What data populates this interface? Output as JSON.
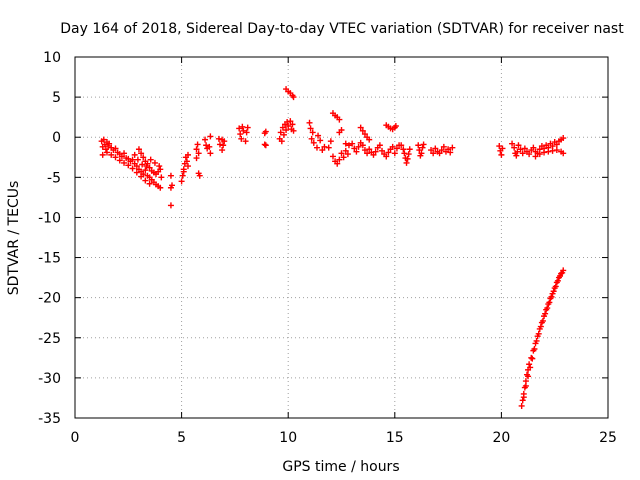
{
  "chart_data": {
    "type": "scatter",
    "title": "Day 164 of 2018, Sidereal Day-to-day VTEC variation (SDTVAR) for receiver nast",
    "xlabel": "GPS time / hours",
    "ylabel": "SDTVAR / TECUs",
    "xlim": [
      0,
      25
    ],
    "ylim": [
      -35,
      10
    ],
    "xticks": [
      "0",
      "5",
      "10",
      "15",
      "20",
      "25"
    ],
    "yticks": [
      "10",
      "5",
      "0",
      "-5",
      "-10",
      "-15",
      "-20",
      "-25",
      "-30",
      "-35"
    ],
    "grid": true,
    "marker": "+",
    "color": "#ff0000",
    "series": [
      {
        "name": "nast",
        "points": [
          [
            1.25,
            -0.5
          ],
          [
            1.3,
            -1.2
          ],
          [
            1.3,
            -2.2
          ],
          [
            1.35,
            -0.3
          ],
          [
            1.4,
            -0.9
          ],
          [
            1.45,
            -1.5
          ],
          [
            1.5,
            -0.6
          ],
          [
            1.55,
            -1.1
          ],
          [
            1.6,
            -0.8
          ],
          [
            1.7,
            -1.3
          ],
          [
            1.8,
            -1.6
          ],
          [
            1.9,
            -1.4
          ],
          [
            2.0,
            -1.9
          ],
          [
            2.1,
            -2.1
          ],
          [
            2.2,
            -2.4
          ],
          [
            2.3,
            -2.0
          ],
          [
            2.4,
            -2.6
          ],
          [
            2.5,
            -2.7
          ],
          [
            2.6,
            -3.0
          ],
          [
            2.7,
            -2.8
          ],
          [
            2.8,
            -3.3
          ],
          [
            2.9,
            -3.6
          ],
          [
            3.0,
            -4.0
          ],
          [
            3.1,
            -4.3
          ],
          [
            3.2,
            -4.6
          ],
          [
            3.3,
            -4.1
          ],
          [
            3.4,
            -4.8
          ],
          [
            3.5,
            -5.0
          ],
          [
            3.6,
            -5.3
          ],
          [
            3.7,
            -5.6
          ],
          [
            3.8,
            -5.9
          ],
          [
            3.9,
            -6.1
          ],
          [
            4.0,
            -6.3
          ],
          [
            1.5,
            -1.9
          ],
          [
            1.7,
            -2.2
          ],
          [
            1.9,
            -2.5
          ],
          [
            2.1,
            -2.9
          ],
          [
            2.3,
            -3.2
          ],
          [
            2.5,
            -3.5
          ],
          [
            2.7,
            -3.9
          ],
          [
            2.9,
            -4.4
          ],
          [
            3.1,
            -4.9
          ],
          [
            3.3,
            -5.4
          ],
          [
            3.5,
            -5.8
          ],
          [
            3.0,
            -1.5
          ],
          [
            3.1,
            -2.0
          ],
          [
            3.2,
            -2.5
          ],
          [
            3.3,
            -3.0
          ],
          [
            3.4,
            -3.3
          ],
          [
            3.5,
            -3.8
          ],
          [
            3.6,
            -4.2
          ],
          [
            3.7,
            -4.4
          ],
          [
            3.8,
            -4.6
          ],
          [
            3.9,
            -4.3
          ],
          [
            4.0,
            -4.0
          ],
          [
            2.8,
            -2.2
          ],
          [
            2.95,
            -2.8
          ],
          [
            3.15,
            -3.4
          ],
          [
            3.35,
            -3.6
          ],
          [
            3.55,
            -2.8
          ],
          [
            3.75,
            -3.2
          ],
          [
            3.95,
            -3.6
          ],
          [
            4.05,
            -5.0
          ],
          [
            4.5,
            -4.8
          ],
          [
            4.5,
            -6.3
          ],
          [
            4.5,
            -8.5
          ],
          [
            4.55,
            -6.0
          ],
          [
            5.0,
            -5.5
          ],
          [
            5.05,
            -4.8
          ],
          [
            5.1,
            -4.0
          ],
          [
            5.15,
            -3.3
          ],
          [
            5.2,
            -2.5
          ],
          [
            5.3,
            -2.2
          ],
          [
            5.25,
            -3.0
          ],
          [
            5.3,
            -3.6
          ],
          [
            5.1,
            -4.3
          ],
          [
            5.7,
            -1.5
          ],
          [
            5.7,
            -2.6
          ],
          [
            5.75,
            -0.9
          ],
          [
            5.8,
            -2.0
          ],
          [
            5.8,
            -4.5
          ],
          [
            5.85,
            -4.8
          ],
          [
            6.1,
            -0.3
          ],
          [
            6.15,
            -1.0
          ],
          [
            6.2,
            -1.4
          ],
          [
            6.35,
            -2.0
          ],
          [
            6.3,
            -1.2
          ],
          [
            6.35,
            0.1
          ],
          [
            6.75,
            -0.2
          ],
          [
            6.8,
            -0.9
          ],
          [
            6.9,
            -1.6
          ],
          [
            6.9,
            -0.3
          ],
          [
            6.95,
            -1.0
          ],
          [
            7.0,
            -0.5
          ],
          [
            7.7,
            1.1
          ],
          [
            7.75,
            0.4
          ],
          [
            7.8,
            -0.2
          ],
          [
            7.85,
            1.3
          ],
          [
            7.9,
            0.8
          ],
          [
            8.0,
            -0.5
          ],
          [
            8.05,
            0.6
          ],
          [
            8.1,
            1.2
          ],
          [
            8.9,
            0.5
          ],
          [
            8.9,
            -0.9
          ],
          [
            8.95,
            0.7
          ],
          [
            8.95,
            -1.0
          ],
          [
            9.6,
            -0.2
          ],
          [
            9.65,
            0.6
          ],
          [
            9.7,
            -0.5
          ],
          [
            9.75,
            1.2
          ],
          [
            9.8,
            0.3
          ],
          [
            9.85,
            1.6
          ],
          [
            9.9,
            0.9
          ],
          [
            9.95,
            1.9
          ],
          [
            10.0,
            1.4
          ],
          [
            10.1,
            2.0
          ],
          [
            10.15,
            1.0
          ],
          [
            10.2,
            1.6
          ],
          [
            10.25,
            0.8
          ],
          [
            9.9,
            6.0
          ],
          [
            10.0,
            5.7
          ],
          [
            10.1,
            5.5
          ],
          [
            10.2,
            5.2
          ],
          [
            10.25,
            5.0
          ],
          [
            11.0,
            1.8
          ],
          [
            11.05,
            1.1
          ],
          [
            11.1,
            -0.2
          ],
          [
            11.15,
            0.6
          ],
          [
            11.2,
            -0.7
          ],
          [
            11.35,
            -1.3
          ],
          [
            11.4,
            0.2
          ],
          [
            11.5,
            -0.4
          ],
          [
            11.6,
            -1.6
          ],
          [
            11.7,
            -1.2
          ],
          [
            11.9,
            -1.3
          ],
          [
            12.0,
            -0.5
          ],
          [
            12.1,
            -2.4
          ],
          [
            12.2,
            -3.0
          ],
          [
            12.3,
            -3.3
          ],
          [
            12.4,
            -2.8
          ],
          [
            12.5,
            -2.0
          ],
          [
            12.6,
            -2.5
          ],
          [
            12.7,
            -1.7
          ],
          [
            12.8,
            -2.1
          ],
          [
            12.85,
            -1.0
          ],
          [
            12.1,
            3.0
          ],
          [
            12.2,
            2.7
          ],
          [
            12.3,
            2.5
          ],
          [
            12.4,
            2.2
          ],
          [
            12.4,
            0.6
          ],
          [
            12.5,
            0.9
          ],
          [
            12.7,
            -0.8
          ],
          [
            13.0,
            -0.8
          ],
          [
            13.1,
            -1.4
          ],
          [
            13.2,
            -1.8
          ],
          [
            13.3,
            -1.2
          ],
          [
            13.4,
            -0.7
          ],
          [
            13.5,
            -1.0
          ],
          [
            13.6,
            -1.6
          ],
          [
            13.7,
            -2.0
          ],
          [
            13.8,
            -1.5
          ],
          [
            13.9,
            -1.9
          ],
          [
            14.0,
            -2.2
          ],
          [
            14.1,
            -1.8
          ],
          [
            14.2,
            -1.3
          ],
          [
            14.3,
            -1.0
          ],
          [
            14.4,
            -1.7
          ],
          [
            14.5,
            -2.1
          ],
          [
            14.6,
            -2.4
          ],
          [
            14.7,
            -1.9
          ],
          [
            14.8,
            -1.5
          ],
          [
            14.9,
            -1.2
          ],
          [
            15.0,
            -2.0
          ],
          [
            15.1,
            -1.4
          ],
          [
            15.2,
            -1.0
          ],
          [
            13.4,
            1.2
          ],
          [
            13.5,
            0.8
          ],
          [
            13.6,
            0.4
          ],
          [
            13.7,
            0.0
          ],
          [
            13.8,
            -0.3
          ],
          [
            14.6,
            1.5
          ],
          [
            14.7,
            1.3
          ],
          [
            14.8,
            1.1
          ],
          [
            14.9,
            1.0
          ],
          [
            15.0,
            1.2
          ],
          [
            15.05,
            1.4
          ],
          [
            15.3,
            -1.0
          ],
          [
            15.4,
            -1.5
          ],
          [
            15.45,
            -2.0
          ],
          [
            15.5,
            -2.6
          ],
          [
            15.55,
            -3.2
          ],
          [
            15.6,
            -2.7
          ],
          [
            15.65,
            -2.1
          ],
          [
            15.7,
            -1.5
          ],
          [
            16.1,
            -1.0
          ],
          [
            16.15,
            -1.6
          ],
          [
            16.2,
            -2.3
          ],
          [
            16.25,
            -2.0
          ],
          [
            16.3,
            -1.3
          ],
          [
            16.35,
            -0.9
          ],
          [
            16.7,
            -1.6
          ],
          [
            16.8,
            -2.0
          ],
          [
            16.9,
            -1.4
          ],
          [
            17.0,
            -1.8
          ],
          [
            17.1,
            -2.0
          ],
          [
            17.2,
            -1.6
          ],
          [
            17.3,
            -1.2
          ],
          [
            17.4,
            -1.8
          ],
          [
            17.5,
            -1.5
          ],
          [
            17.6,
            -1.9
          ],
          [
            17.7,
            -1.3
          ],
          [
            19.9,
            -1.1
          ],
          [
            19.95,
            -1.7
          ],
          [
            20.0,
            -2.2
          ],
          [
            20.05,
            -1.4
          ],
          [
            20.5,
            -0.8
          ],
          [
            20.6,
            -1.3
          ],
          [
            20.65,
            -2.0
          ],
          [
            20.7,
            -2.3
          ],
          [
            20.75,
            -1.8
          ],
          [
            20.8,
            -1.0
          ],
          [
            20.9,
            -1.5
          ],
          [
            21.0,
            -2.0
          ],
          [
            21.1,
            -1.4
          ],
          [
            21.2,
            -1.8
          ],
          [
            21.3,
            -2.1
          ],
          [
            21.4,
            -1.6
          ],
          [
            21.5,
            -1.3
          ],
          [
            21.6,
            -1.8
          ],
          [
            21.7,
            -2.0
          ],
          [
            21.8,
            -1.5
          ],
          [
            21.9,
            -1.1
          ],
          [
            22.0,
            -1.4
          ],
          [
            22.1,
            -1.0
          ],
          [
            22.2,
            -1.3
          ],
          [
            22.3,
            -0.8
          ],
          [
            22.4,
            -1.1
          ],
          [
            22.5,
            -0.6
          ],
          [
            22.6,
            -0.9
          ],
          [
            22.7,
            -0.5
          ],
          [
            22.8,
            -0.3
          ],
          [
            22.9,
            -0.1
          ],
          [
            21.6,
            -2.4
          ],
          [
            21.8,
            -2.1
          ],
          [
            22.0,
            -1.9
          ],
          [
            22.2,
            -1.8
          ],
          [
            22.4,
            -1.7
          ],
          [
            22.6,
            -1.6
          ],
          [
            22.8,
            -1.8
          ],
          [
            22.9,
            -2.0
          ],
          [
            20.95,
            -33.5
          ],
          [
            21.0,
            -32.8
          ],
          [
            21.05,
            -32.0
          ],
          [
            21.1,
            -31.2
          ],
          [
            21.15,
            -30.4
          ],
          [
            21.2,
            -29.6
          ],
          [
            21.25,
            -29.0
          ],
          [
            21.3,
            -28.3
          ],
          [
            21.4,
            -27.5
          ],
          [
            21.5,
            -26.6
          ],
          [
            21.6,
            -25.7
          ],
          [
            21.7,
            -24.8
          ],
          [
            21.8,
            -23.9
          ],
          [
            21.9,
            -23.1
          ],
          [
            22.0,
            -22.3
          ],
          [
            22.1,
            -21.5
          ],
          [
            22.2,
            -20.8
          ],
          [
            22.3,
            -20.1
          ],
          [
            22.4,
            -19.5
          ],
          [
            22.5,
            -18.8
          ],
          [
            22.6,
            -18.1
          ],
          [
            22.7,
            -17.5
          ],
          [
            22.8,
            -17.0
          ],
          [
            22.9,
            -16.6
          ],
          [
            21.05,
            -32.4
          ],
          [
            21.15,
            -31.0
          ],
          [
            21.25,
            -29.8
          ],
          [
            21.35,
            -28.7
          ],
          [
            21.45,
            -27.6
          ],
          [
            21.55,
            -26.4
          ],
          [
            21.65,
            -25.4
          ],
          [
            21.75,
            -24.5
          ],
          [
            21.85,
            -23.6
          ],
          [
            21.95,
            -22.9
          ],
          [
            22.05,
            -22.0
          ],
          [
            22.15,
            -21.3
          ],
          [
            22.25,
            -20.6
          ],
          [
            22.35,
            -19.9
          ],
          [
            22.45,
            -19.2
          ],
          [
            22.55,
            -18.6
          ],
          [
            22.65,
            -17.9
          ],
          [
            22.75,
            -17.3
          ],
          [
            22.85,
            -16.9
          ]
        ]
      }
    ]
  }
}
